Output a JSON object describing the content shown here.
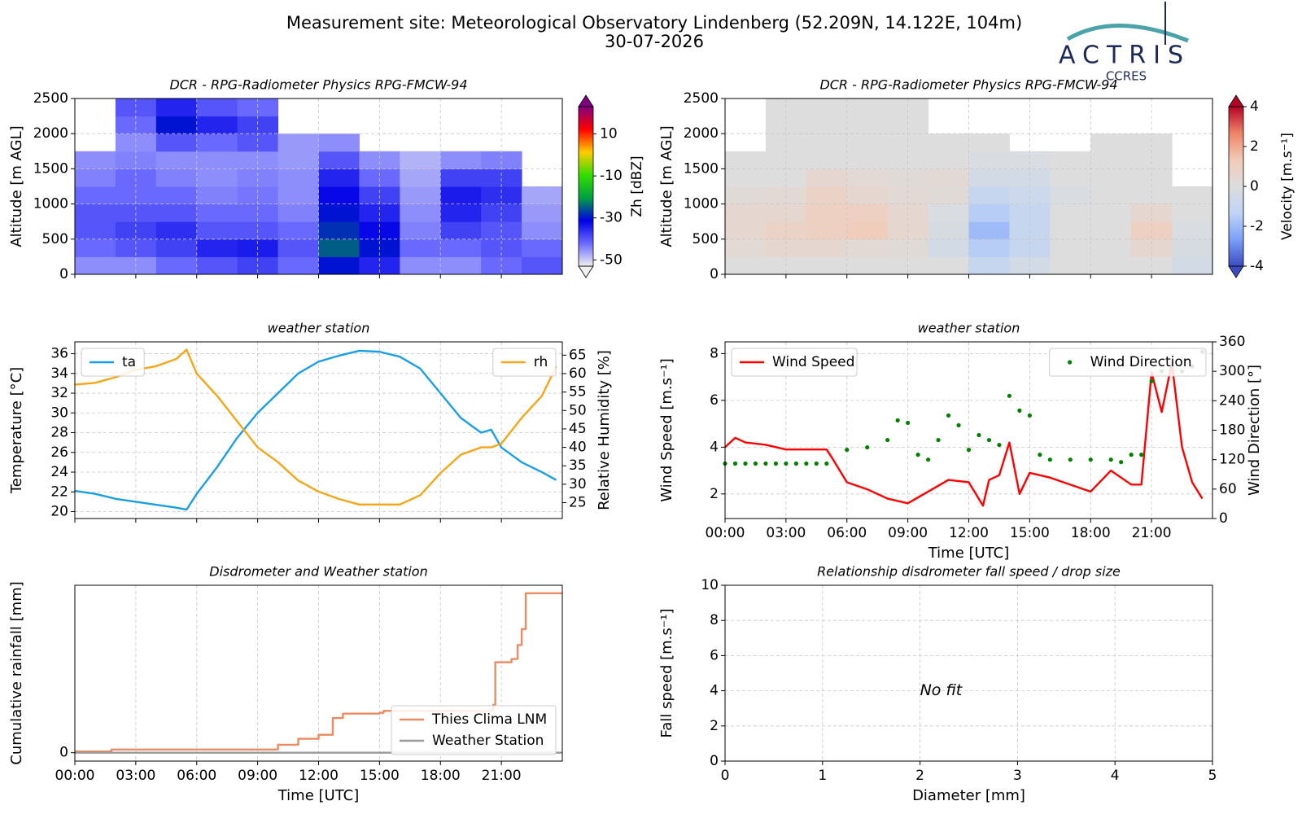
{
  "title": "Measurement site: Meteorological Observatory Lindenberg (52.209N, 14.122E, 104m)",
  "subtitle": "30-07-2026",
  "logo": {
    "name": "ACTRIS",
    "subtitle": "CCRES"
  },
  "chart_data": [
    {
      "type": "heatmap",
      "title": "DCR - RPG-Radiometer Physics RPG-FMCW-94",
      "ylabel": "Altitude [m AGL]",
      "xlim": [
        0,
        24
      ],
      "xticks": [
        0,
        3,
        6,
        9,
        12,
        15,
        18,
        21
      ],
      "xticklabels": false,
      "ylim": [
        0,
        2500
      ],
      "yticks": [
        0,
        500,
        1000,
        1500,
        2000,
        2500
      ],
      "grid": true,
      "x": [
        1,
        3,
        5,
        7,
        9,
        11,
        13,
        15,
        17,
        19,
        21,
        23
      ],
      "y": [
        125,
        375,
        625,
        875,
        1125,
        1375,
        1625,
        1875,
        2125,
        2375
      ],
      "values": [
        [
          -45,
          -42,
          -40,
          -40,
          -42,
          -44,
          -45,
          null,
          null,
          null
        ],
        [
          -45,
          -40,
          -38,
          -40,
          -42,
          -42,
          -44,
          -45,
          -42,
          -40
        ],
        [
          -42,
          -38,
          -36,
          -40,
          -42,
          -44,
          -45,
          -40,
          -30,
          -35
        ],
        [
          -40,
          -35,
          -40,
          -42,
          -44,
          -45,
          -45,
          -42,
          -35,
          -40
        ],
        [
          -38,
          -34,
          -40,
          -42,
          -43,
          -44,
          -45,
          -40,
          -38,
          -42
        ],
        [
          -42,
          -40,
          -42,
          -44,
          -45,
          -45,
          -46,
          -46,
          null,
          null
        ],
        [
          -30,
          -25,
          -28,
          -30,
          -32,
          -35,
          -40,
          -45,
          null,
          null
        ],
        [
          -35,
          -30,
          -32,
          -35,
          -38,
          -42,
          -45,
          null,
          null,
          null
        ],
        [
          -45,
          -42,
          -44,
          -45,
          -46,
          -47,
          -48,
          null,
          null,
          null
        ],
        [
          -45,
          -42,
          -38,
          -35,
          -34,
          -38,
          -45,
          null,
          null,
          null
        ],
        [
          -42,
          -40,
          -40,
          -38,
          -36,
          -38,
          -44,
          null,
          null,
          null
        ],
        [
          -40,
          -42,
          -45,
          -46,
          -47,
          null,
          null,
          null,
          null,
          null
        ]
      ],
      "zlabel": "Zh [dBZ]",
      "zlim": [
        -53,
        23
      ],
      "zticks": [
        -50,
        -30,
        -10,
        10
      ],
      "colormap": [
        "#efefef",
        "#6a6aff",
        "#0000e6",
        "#00a040",
        "#33dd00",
        "#ffcc00",
        "#ff0000",
        "#800080"
      ]
    },
    {
      "type": "heatmap",
      "title": "DCR - RPG-Radiometer Physics RPG-FMCW-94",
      "ylabel": "Altitude [m AGL]",
      "xlim": [
        0,
        24
      ],
      "xticks": [
        0,
        3,
        6,
        9,
        12,
        15,
        18,
        21
      ],
      "xticklabels": false,
      "ylim": [
        0,
        2500
      ],
      "yticks": [
        0,
        500,
        1000,
        1500,
        2000,
        2500
      ],
      "grid": true,
      "x": [
        1,
        3,
        5,
        7,
        9,
        11,
        13,
        15,
        17,
        19,
        21,
        23
      ],
      "y": [
        125,
        375,
        625,
        875,
        1125,
        1375,
        1625,
        1875,
        2125,
        2375
      ],
      "values": [
        [
          0,
          0.3,
          0.5,
          0.5,
          0.2,
          0,
          0,
          null,
          null,
          null
        ],
        [
          0,
          0.5,
          0.8,
          0.5,
          0.3,
          0,
          0,
          0,
          0,
          0
        ],
        [
          0,
          0.5,
          1,
          1,
          0.8,
          0.5,
          0,
          0,
          0,
          0
        ],
        [
          0,
          0.3,
          1.2,
          1,
          0.5,
          0.3,
          0,
          0,
          0,
          0
        ],
        [
          0,
          0.2,
          0.5,
          0.5,
          0.3,
          0.2,
          0,
          0,
          0,
          0
        ],
        [
          0,
          -0.5,
          -0.3,
          -0.2,
          0.2,
          0.3,
          0,
          0,
          null,
          null
        ],
        [
          -1,
          -1.5,
          -2,
          -1.5,
          -1,
          -0.5,
          -0.2,
          0,
          null,
          null
        ],
        [
          -0.5,
          -1,
          -1,
          -1,
          -0.8,
          -0.5,
          -0.2,
          null,
          null,
          null
        ],
        [
          0,
          0,
          0,
          0,
          -0.2,
          0,
          0,
          null,
          null,
          null
        ],
        [
          0,
          0,
          0,
          0,
          0,
          0,
          0,
          0,
          null,
          null
        ],
        [
          0,
          0.5,
          1,
          0.5,
          0,
          0,
          0,
          0,
          null,
          null
        ],
        [
          -0.5,
          -0.3,
          -0.2,
          0,
          0,
          null,
          null,
          null,
          null,
          null
        ]
      ],
      "zlabel": "Velocity [m.s⁻¹]",
      "zlim": [
        -4,
        4
      ],
      "zticks": [
        -4,
        -2,
        0,
        2,
        4
      ],
      "colormap": [
        "#3b4cc0",
        "#7b9ff9",
        "#c0d4f5",
        "#dddddd",
        "#f2cbb7",
        "#ee8468",
        "#b40426"
      ]
    },
    {
      "type": "line",
      "title": "weather station",
      "ylabel": "Temperature [°C]",
      "y2label": "Relative Humidity [%]",
      "xlim": [
        0,
        24
      ],
      "xticks": [
        0,
        3,
        6,
        9,
        12,
        15,
        18,
        21
      ],
      "xticklabels": false,
      "ylim": [
        19.3,
        37.2
      ],
      "yticks": [
        20,
        22,
        24,
        26,
        28,
        30,
        32,
        34,
        36
      ],
      "y2lim": [
        20.7,
        68.6
      ],
      "y2ticks": [
        25,
        30,
        35,
        40,
        45,
        50,
        55,
        60,
        65
      ],
      "grid": true,
      "legend": "upper left",
      "legend2": "upper right",
      "x": [
        0,
        1,
        2,
        3,
        4,
        5,
        5.5,
        6,
        7,
        8,
        9,
        10,
        11,
        12,
        13,
        14,
        15,
        16,
        17,
        18,
        19,
        20,
        20.5,
        21,
        22,
        23,
        23.7
      ],
      "series": [
        {
          "name": "ta",
          "color": "#1a9fe6",
          "values": [
            22.1,
            21.8,
            21.3,
            21.0,
            20.7,
            20.4,
            20.2,
            21.8,
            24.5,
            27.5,
            30.0,
            32.0,
            34.0,
            35.2,
            35.8,
            36.3,
            36.2,
            35.7,
            34.5,
            32.0,
            29.5,
            28.0,
            28.3,
            26.5,
            25.0,
            24.0,
            23.2
          ]
        },
        {
          "name": "rh",
          "color": "#f5a616",
          "axis": "y2",
          "values": [
            57,
            57.5,
            59,
            61,
            62,
            64,
            66.5,
            60,
            54,
            47,
            40,
            36,
            31,
            28,
            26,
            24.5,
            24.5,
            24.5,
            27,
            33,
            38,
            40,
            40,
            41,
            48,
            54,
            62
          ]
        }
      ]
    },
    {
      "type": "line",
      "title": "weather station",
      "xlabel": "Time [UTC]",
      "ylabel": "Wind Speed [m.s⁻¹]",
      "y2label": "Wind Direction [°]",
      "xlim": [
        0,
        24
      ],
      "xticks": [
        {
          "value": 0,
          "label": "00:00"
        },
        {
          "value": 3,
          "label": "03:00"
        },
        {
          "value": 6,
          "label": "06:00"
        },
        {
          "value": 9,
          "label": "09:00"
        },
        {
          "value": 12,
          "label": "12:00"
        },
        {
          "value": 15,
          "label": "15:00"
        },
        {
          "value": 18,
          "label": "18:00"
        },
        {
          "value": 21,
          "label": "21:00"
        }
      ],
      "ylim": [
        0.95,
        8.5
      ],
      "yticks": [
        2,
        4,
        6,
        8
      ],
      "y2lim": [
        0,
        360
      ],
      "y2ticks": [
        0,
        60,
        120,
        180,
        240,
        300,
        360
      ],
      "grid": true,
      "legend": "upper left",
      "legend2": "upper right",
      "series": [
        {
          "name": "Wind Speed",
          "color": "#ff0000",
          "x": [
            0,
            0.5,
            1,
            2,
            3,
            4,
            5,
            5.3,
            6,
            7,
            8,
            9,
            10,
            11,
            12,
            12.7,
            13,
            13.5,
            14,
            14.5,
            15,
            16,
            17,
            18,
            19,
            20,
            20.5,
            21,
            21.5,
            22,
            22.5,
            23,
            23.5
          ],
          "values": [
            4.0,
            4.4,
            4.2,
            4.1,
            3.9,
            3.9,
            3.9,
            3.5,
            2.5,
            2.2,
            1.8,
            1.6,
            2.1,
            2.6,
            2.5,
            1.5,
            2.6,
            2.8,
            4.2,
            2.0,
            2.9,
            2.7,
            2.4,
            2.1,
            3.0,
            2.4,
            2.4,
            7.2,
            5.5,
            7.6,
            4.0,
            2.5,
            1.8
          ]
        },
        {
          "name": "Wind Direction",
          "color": "#008000",
          "axis": "y2",
          "marker": "dot",
          "x": [
            0,
            0.5,
            1,
            1.5,
            2,
            2.5,
            3,
            3.5,
            4,
            4.5,
            5,
            6,
            7,
            8,
            8.5,
            9,
            9.5,
            10,
            10.5,
            11,
            11.5,
            12,
            12.5,
            13,
            13.5,
            14,
            14.5,
            15,
            15.5,
            16,
            17,
            18,
            19,
            19.5,
            20,
            20.5,
            21,
            21.5,
            22,
            22.5,
            23,
            23.5
          ],
          "values": [
            112,
            112,
            112,
            112,
            112,
            112,
            112,
            112,
            112,
            112,
            112,
            140,
            145,
            160,
            200,
            195,
            130,
            120,
            160,
            210,
            190,
            140,
            170,
            160,
            150,
            250,
            220,
            210,
            130,
            120,
            120,
            120,
            120,
            115,
            130,
            130,
            280,
            300,
            310,
            300,
            310,
            340
          ]
        }
      ]
    },
    {
      "type": "line",
      "title": "Disdrometer and Weather station",
      "xlabel": "Time [UTC]",
      "ylabel": "Cumulative rainfall [mm]",
      "xlim": [
        0,
        24
      ],
      "xticks": [
        {
          "value": 0,
          "label": "00:00"
        },
        {
          "value": 3,
          "label": "03:00"
        },
        {
          "value": 6,
          "label": "06:00"
        },
        {
          "value": 9,
          "label": "09:00"
        },
        {
          "value": 12,
          "label": "12:00"
        },
        {
          "value": 15,
          "label": "15:00"
        },
        {
          "value": 18,
          "label": "18:00"
        },
        {
          "value": 21,
          "label": "21:00"
        }
      ],
      "ylim": [
        -0.21,
        4.2
      ],
      "yticks": [
        0
      ],
      "grid": true,
      "legend": "lower right",
      "drawstyle": "steps-post",
      "series": [
        {
          "name": "Thies Clima LNM",
          "color": "#ec8a62",
          "x": [
            0,
            1.8,
            10,
            11,
            12,
            12.7,
            13.2,
            15,
            15.2,
            20.6,
            20.7,
            21.5,
            21.8,
            22,
            22.2,
            24
          ],
          "values": [
            0.03,
            0.08,
            0.2,
            0.35,
            0.45,
            0.87,
            0.98,
            1.0,
            1.05,
            1.2,
            2.27,
            2.35,
            2.7,
            3.1,
            4.0,
            4.0
          ]
        },
        {
          "name": "Weather Station",
          "color": "#999999",
          "x": [
            0,
            24
          ],
          "values": [
            0,
            0
          ]
        }
      ]
    },
    {
      "type": "scatter",
      "title": "Relationship disdrometer fall speed / drop size",
      "xlabel": "Diameter [mm]",
      "ylabel": "Fall speed [m.s⁻¹]",
      "xlim": [
        0,
        5
      ],
      "xticks": [
        0,
        1,
        2,
        3,
        4,
        5
      ],
      "ylim": [
        0,
        10
      ],
      "yticks": [
        0,
        2,
        4,
        6,
        8,
        10
      ],
      "grid": true,
      "annotations": [
        {
          "text": "No fit",
          "x": 2,
          "y": 4
        }
      ]
    }
  ]
}
